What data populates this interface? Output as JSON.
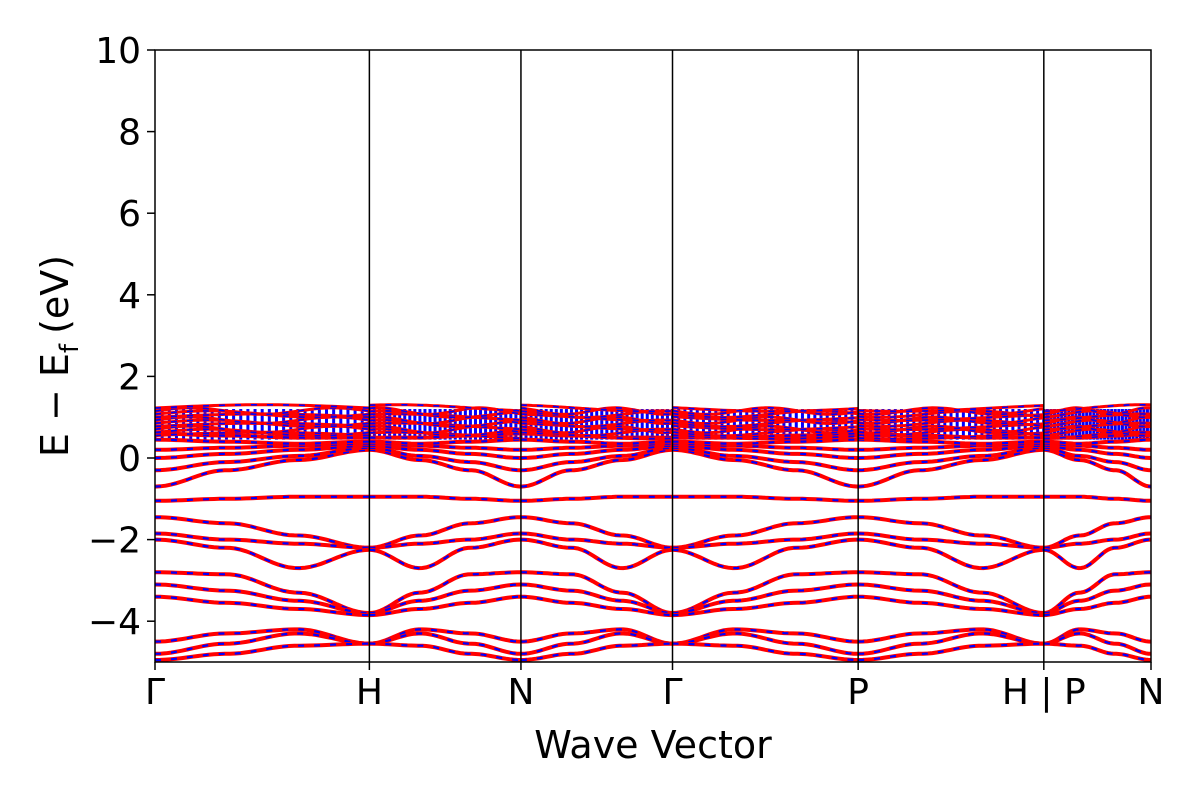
{
  "chart_data": {
    "type": "line",
    "title": "",
    "xlabel": "Wave Vector",
    "ylabel_main": "E − E",
    "ylabel_sub": "f",
    "ylabel_unit": "(eV)",
    "ylim": [
      -5,
      10
    ],
    "yticks": [
      {
        "value": 10,
        "label": "10"
      },
      {
        "value": 8,
        "label": "8"
      },
      {
        "value": 6,
        "label": "6"
      },
      {
        "value": 4,
        "label": "4"
      },
      {
        "value": 2,
        "label": "2"
      },
      {
        "value": 0,
        "label": "0"
      },
      {
        "value": -2,
        "label": "−2"
      },
      {
        "value": -4,
        "label": "−4"
      }
    ],
    "kpoints": [
      {
        "pos": 0.0,
        "label": "Γ"
      },
      {
        "pos": 1.0,
        "label": "H"
      },
      {
        "pos": 1.707,
        "label": "N"
      },
      {
        "pos": 2.414,
        "label": "Γ"
      },
      {
        "pos": 3.28,
        "label": "P"
      },
      {
        "pos": 4.146,
        "label": "H | P"
      },
      {
        "pos": 4.646,
        "label": "N"
      }
    ],
    "grid": false,
    "series_colors": {
      "up": "#ff0000",
      "down": "#0000ff"
    },
    "segments": [
      {
        "from": "Γ",
        "to": "H",
        "valley_bands": [
          [
            -0.7,
            -0.3,
            -0.05,
            0.2
          ],
          [
            -0.3,
            -0.1,
            0.05,
            0.25
          ],
          [
            0.0,
            0.1,
            0.2,
            0.3
          ],
          [
            0.2,
            0.25,
            0.3,
            0.35
          ],
          [
            0.45,
            0.4,
            0.35,
            0.4
          ],
          [
            0.6,
            0.55,
            0.5,
            0.5
          ]
        ],
        "valence_bands": [
          [
            -1.05,
            -1.0,
            -0.95,
            -0.95
          ],
          [
            -1.45,
            -1.6,
            -1.9,
            -2.2
          ],
          [
            -1.85,
            -2.0,
            -2.1,
            -2.2
          ],
          [
            -2.0,
            -2.2,
            -2.7,
            -2.25
          ],
          [
            -2.8,
            -2.85,
            -3.3,
            -3.8
          ],
          [
            -3.1,
            -3.25,
            -3.5,
            -3.8
          ],
          [
            -3.4,
            -3.55,
            -3.7,
            -3.85
          ],
          [
            -4.5,
            -4.3,
            -4.2,
            -4.55
          ],
          [
            -4.8,
            -4.55,
            -4.3,
            -4.55
          ],
          [
            -4.95,
            -4.8,
            -4.6,
            -4.55
          ]
        ]
      }
    ]
  }
}
